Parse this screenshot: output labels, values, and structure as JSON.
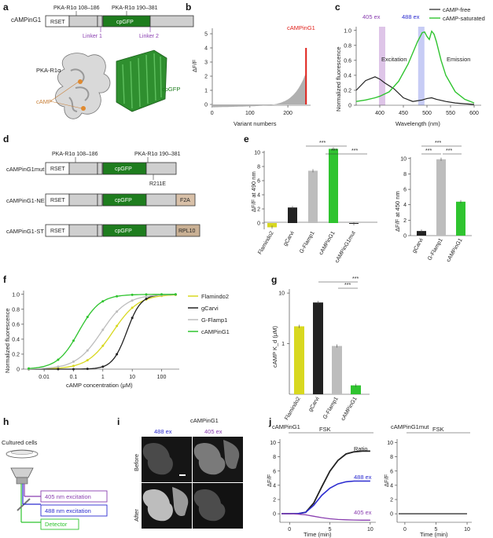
{
  "panel_labels": [
    "a",
    "b",
    "c",
    "d",
    "e",
    "f",
    "g",
    "h",
    "i",
    "j"
  ],
  "colors": {
    "rset": "#ffffff",
    "pka": "#cfcfcf",
    "cpgfp": "#1e7d1e",
    "f2a": "#d8c0a8",
    "rpl10": "#c9b094",
    "purple": "#8a3fb0",
    "blue": "#2c2cd0",
    "green": "#2fc42f",
    "black": "#222222",
    "yellow": "#d8d820",
    "gray": "#bdbdbd",
    "red": "#e0201a",
    "violet_band": "#d6b6e2",
    "blue_band": "#b9bff2"
  },
  "a": {
    "construct_name": "cAMPinG1",
    "rset": "RSET",
    "cpgfp": "cpGFP",
    "pka1": "PKA-R1α 108–186",
    "pka2": "PKA-R1α 190–381",
    "linker1": "Linker 1",
    "linker2": "Linker 2",
    "struct_pka": "PKA-R1α",
    "struct_cpgfp": "cpGFP",
    "struct_camp": "cAMP"
  },
  "b": {
    "ylabel": "ΔF/F",
    "xlabel": "Variant numbers",
    "highlight_label": "cAMPinG1",
    "yticks": [
      "0",
      "1",
      "2",
      "3",
      "4",
      "5"
    ],
    "xticks": [
      "0",
      "100",
      "200"
    ]
  },
  "c": {
    "legend": [
      "cAMP-free",
      "cAMP-saturated"
    ],
    "band1": "405 ex",
    "band2": "488 ex",
    "excitation": "Excitation",
    "emission": "Emission",
    "ylabel": "Normalized fluorescence",
    "xlabel": "Wavelength (nm)",
    "xticks": [
      "400",
      "450",
      "500",
      "550",
      "600"
    ],
    "yticks": [
      "0",
      "0.2",
      "0.4",
      "0.6",
      "0.8",
      "1.0"
    ]
  },
  "d": {
    "constructs": [
      {
        "name": "cAMPinG1mut",
        "tail": ""
      },
      {
        "name": "cAMPinG1-NE",
        "tail": "F2A"
      },
      {
        "name": "cAMPinG1-ST",
        "tail": "RPL10"
      }
    ],
    "rset": "RSET",
    "cpgfp": "cpGFP",
    "pka1": "PKA-R1α 108–186",
    "pka2": "PKA-R1α 190–381",
    "mutation": "R211E"
  },
  "e": {
    "left": {
      "ylabel": "ΔF/F at 490 nm",
      "categories": [
        "Flamindo2",
        "gCarvi",
        "G-Flamp1",
        "cAMPinG1",
        "cAMPinG1mut"
      ],
      "yticks": [
        "0",
        "2",
        "4",
        "6",
        "8",
        "10"
      ],
      "stars": [
        "***",
        "***",
        "***"
      ]
    },
    "right": {
      "ylabel": "ΔF/F at 450 nm",
      "categories": [
        "gCarvi",
        "G-Flamp1",
        "cAMPinG1"
      ],
      "yticks": [
        "0",
        "2",
        "4",
        "6",
        "8",
        "10"
      ],
      "stars": [
        "***",
        "***",
        "***"
      ]
    }
  },
  "f": {
    "ylabel": "Normalized fluorescence",
    "xlabel": "cAMP concentration (μM)",
    "legend": [
      "Flamindo2",
      "gCarvi",
      "G-Flamp1",
      "cAMPinG1"
    ],
    "xticks": [
      "0.01",
      "0.1",
      "1",
      "10",
      "100"
    ],
    "yticks": [
      "0",
      "0.2",
      "0.4",
      "0.6",
      "0.8",
      "1.0"
    ]
  },
  "g": {
    "ylabel": "cAMP K_d (μM)",
    "categories": [
      "Flamindo2",
      "gCarvi",
      "G-Flamp1",
      "cAMPinG1"
    ],
    "yticks": [
      "1",
      "10"
    ],
    "stars": [
      "***",
      "***"
    ]
  },
  "h": {
    "cells": "Cultured cells",
    "ex405": "405 nm excitation",
    "ex488": "488 nm excitation",
    "detector": "Detector"
  },
  "i": {
    "title": "cAMPinG1",
    "col1": "488 ex",
    "col2": "405 ex",
    "row1": "Before",
    "row2": "After"
  },
  "j": {
    "left_title": "cAMPinG1",
    "right_title": "cAMPinG1mut",
    "fsk": "FSK",
    "ylabel": "ΔF/F",
    "xlabel": "Time (min)",
    "ratio": "Ratio",
    "ex488": "488 ex",
    "ex405": "405 ex",
    "yticks": [
      "0",
      "2",
      "4",
      "6",
      "8",
      "10"
    ],
    "xticks": [
      "0",
      "5",
      "10"
    ]
  },
  "chart_data": [
    {
      "type": "bar",
      "title": "",
      "xlabel": "Variant numbers",
      "ylabel": "ΔF/F",
      "ylim": [
        -0.5,
        5.5
      ],
      "xlim": [
        -20,
        260
      ],
      "highlight": {
        "name": "cAMPinG1",
        "x": 248,
        "y": 4.0
      }
    },
    {
      "type": "line",
      "xlabel": "Wavelength (nm)",
      "ylabel": "Normalized fluorescence",
      "ylim": [
        0,
        1.05
      ],
      "xlim": [
        350,
        600
      ],
      "series": [
        {
          "name": "cAMP-free",
          "x": [
            350,
            370,
            390,
            400,
            410,
            430,
            450,
            470,
            490,
            500,
            510,
            520,
            540,
            560,
            580,
            600
          ],
          "y": [
            0.2,
            0.33,
            0.38,
            0.35,
            0.3,
            0.22,
            0.1,
            0.05,
            0.07,
            0.09,
            0.1,
            0.08,
            0.05,
            0.03,
            0.02,
            0.01
          ]
        },
        {
          "name": "cAMP-saturated",
          "x": [
            350,
            370,
            390,
            400,
            420,
            440,
            460,
            480,
            490,
            495,
            500,
            505,
            510,
            515,
            520,
            530,
            540,
            560,
            580,
            600
          ],
          "y": [
            0.05,
            0.07,
            0.1,
            0.12,
            0.18,
            0.32,
            0.55,
            0.85,
            0.97,
            0.98,
            0.92,
            0.88,
            0.99,
            0.95,
            0.85,
            0.6,
            0.4,
            0.18,
            0.08,
            0.03
          ]
        }
      ],
      "bands": [
        {
          "name": "405 ex",
          "x": 405
        },
        {
          "name": "488 ex",
          "x": 488
        }
      ]
    },
    {
      "type": "bar",
      "ylabel": "ΔF/F at 490 nm",
      "categories": [
        "Flamindo2",
        "gCarvi",
        "G-Flamp1",
        "cAMPinG1",
        "cAMPinG1mut"
      ],
      "values": [
        -0.6,
        2.2,
        7.4,
        10.5,
        -0.1
      ],
      "ylim": [
        -1,
        11
      ]
    },
    {
      "type": "bar",
      "ylabel": "ΔF/F at 450 nm",
      "categories": [
        "gCarvi",
        "G-Flamp1",
        "cAMPinG1"
      ],
      "values": [
        0.6,
        9.9,
        4.4
      ],
      "ylim": [
        0,
        11
      ]
    },
    {
      "type": "line",
      "xlabel": "cAMP concentration (μM)",
      "ylabel": "Normalized fluorescence",
      "xscale": "log",
      "ylim": [
        0,
        1.05
      ],
      "series": [
        {
          "name": "Flamindo2",
          "kd": 2.2,
          "n": 1.0
        },
        {
          "name": "gCarvi",
          "kd": 6.5,
          "n": 1.8
        },
        {
          "name": "G-Flamp1",
          "kd": 0.9,
          "n": 1.0
        },
        {
          "name": "cAMPinG1",
          "kd": 0.15,
          "n": 1.2
        }
      ]
    },
    {
      "type": "bar",
      "ylabel": "cAMP K_d (μM)",
      "yscale": "log",
      "categories": [
        "Flamindo2",
        "gCarvi",
        "G-Flamp1",
        "cAMPinG1"
      ],
      "values": [
        2.2,
        6.5,
        0.9,
        0.15
      ],
      "ylim": [
        0.1,
        10
      ]
    },
    {
      "type": "line",
      "title": "cAMPinG1",
      "xlabel": "Time (min)",
      "ylabel": "ΔF/F",
      "ylim": [
        -1,
        10
      ],
      "xlim": [
        -1,
        10
      ],
      "series": [
        {
          "name": "Ratio",
          "x": [
            -1,
            0,
            1,
            2,
            3,
            4,
            5,
            6,
            7,
            8,
            9,
            10
          ],
          "y": [
            0,
            0,
            0,
            0.2,
            1.5,
            3.8,
            6.0,
            7.5,
            8.4,
            8.7,
            8.8,
            8.8
          ]
        },
        {
          "name": "488 ex",
          "x": [
            -1,
            0,
            1,
            2,
            3,
            4,
            5,
            6,
            7,
            8,
            9,
            10
          ],
          "y": [
            0,
            0,
            0,
            0.2,
            1.2,
            2.6,
            3.6,
            4.2,
            4.5,
            4.6,
            4.6,
            4.6
          ]
        },
        {
          "name": "405 ex",
          "x": [
            -1,
            0,
            1,
            2,
            3,
            4,
            5,
            6,
            7,
            8,
            9,
            10
          ],
          "y": [
            0,
            0,
            -0.05,
            -0.15,
            -0.35,
            -0.55,
            -0.7,
            -0.8,
            -0.85,
            -0.88,
            -0.9,
            -0.9
          ]
        }
      ]
    },
    {
      "type": "line",
      "title": "cAMPinG1mut",
      "xlabel": "Time (min)",
      "ylabel": "ΔF/F",
      "ylim": [
        -1,
        10
      ],
      "xlim": [
        -1,
        10
      ],
      "series": [
        {
          "name": "cAMPinG1mut",
          "x": [
            -1,
            0,
            5,
            10
          ],
          "y": [
            0,
            0,
            0,
            0
          ]
        }
      ]
    }
  ]
}
